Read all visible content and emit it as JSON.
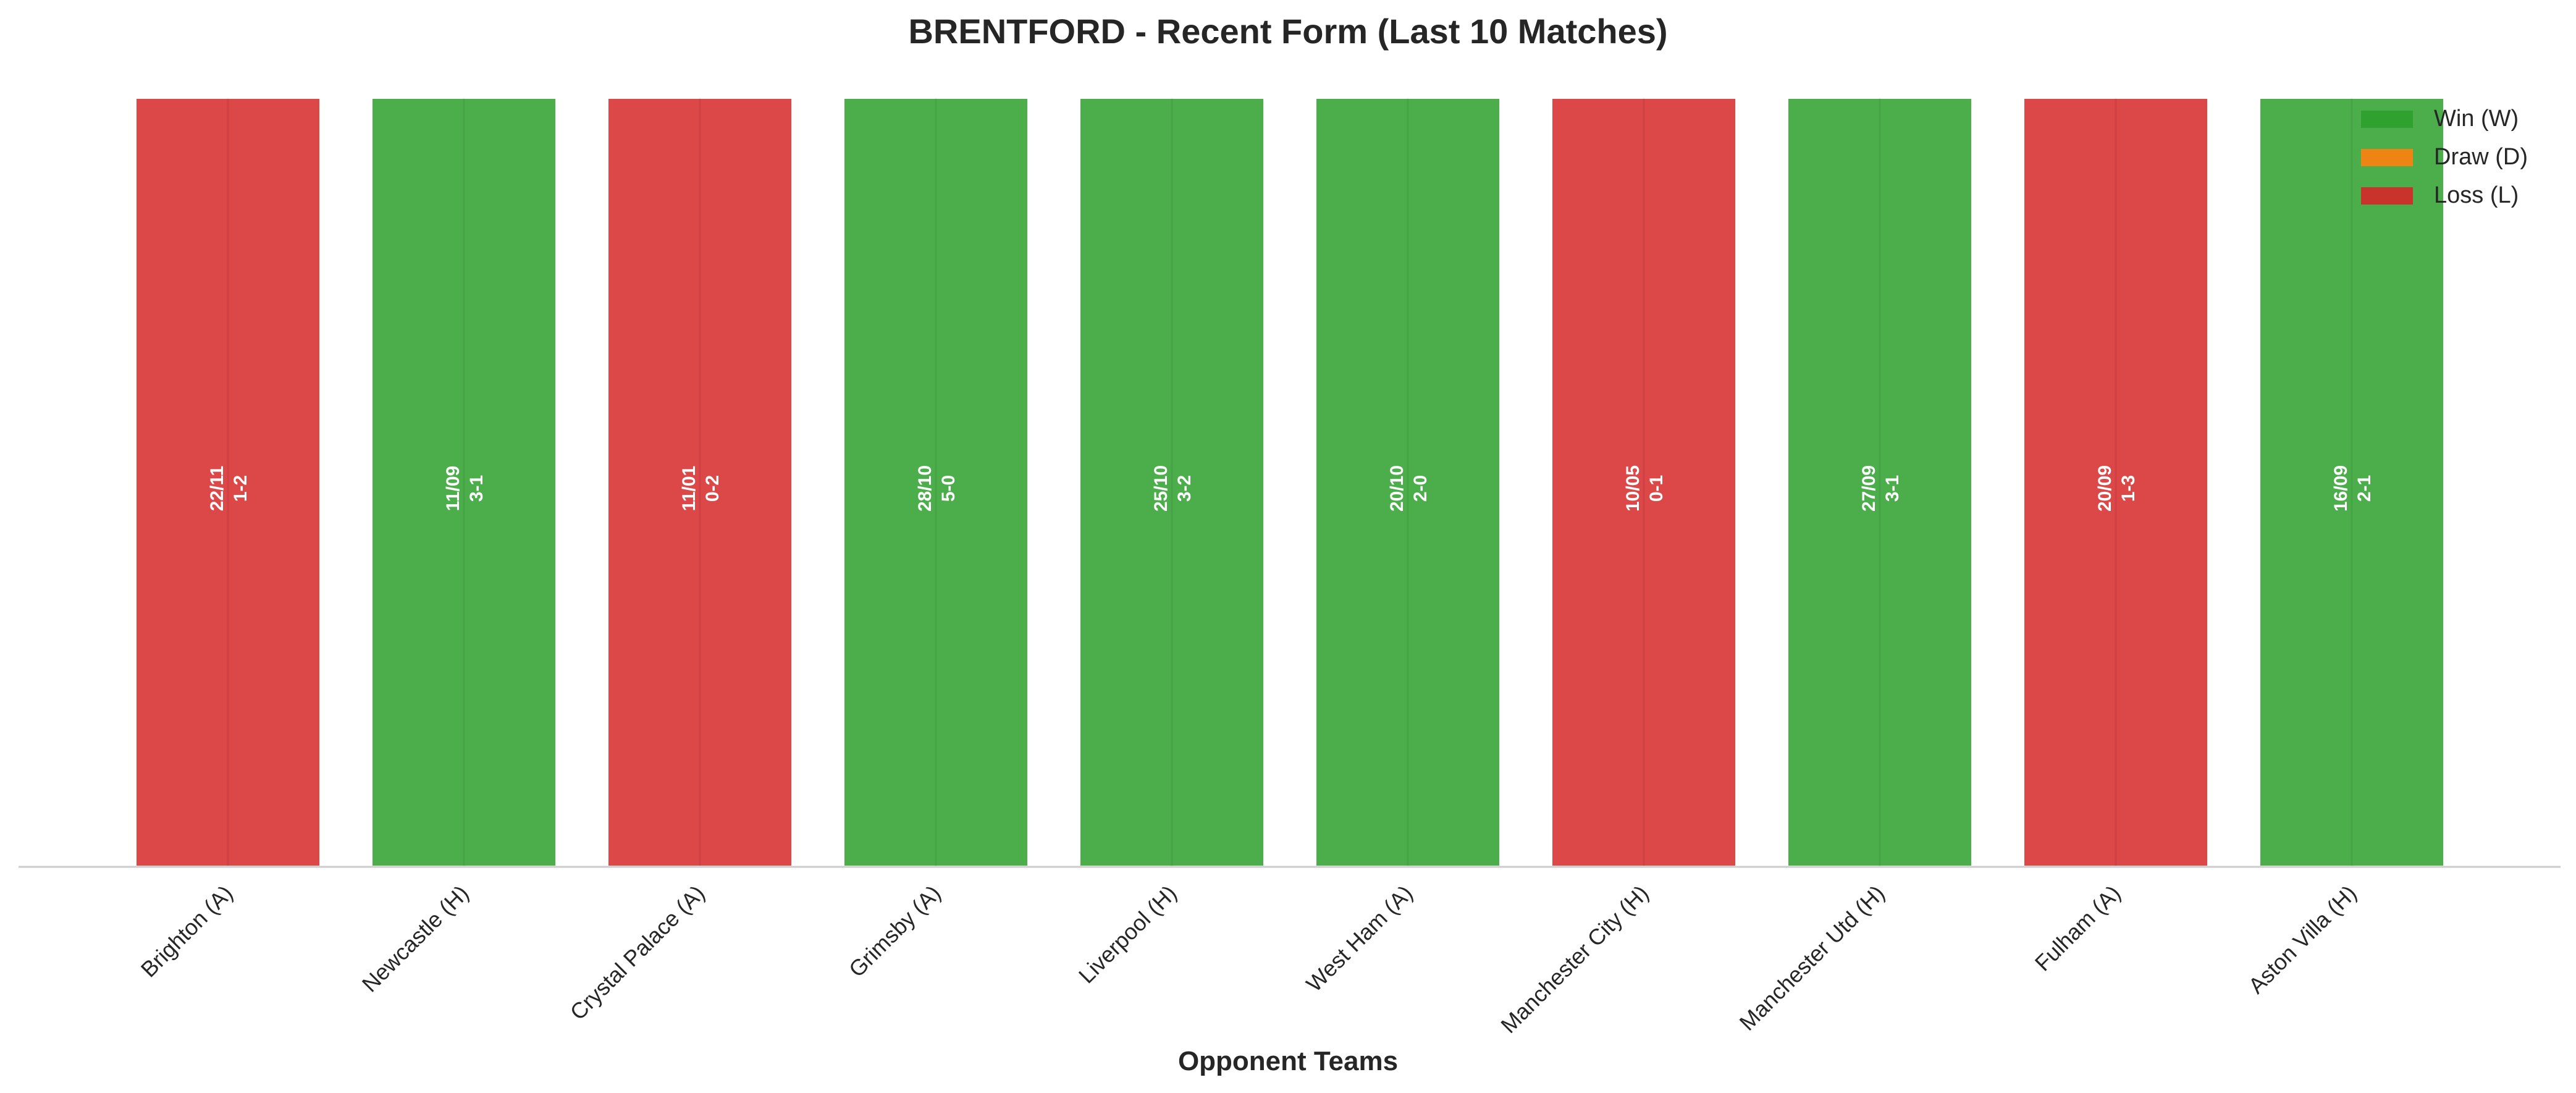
{
  "chart_data": {
    "type": "bar",
    "title": "BRENTFORD - Recent Form (Last 10 Matches)",
    "xlabel": "Opponent Teams",
    "ylabel": "",
    "ylim": [
      0,
      1
    ],
    "grid": false,
    "legend_position": "top-right",
    "categories": [
      "Brighton (A)",
      "Newcastle (H)",
      "Crystal Palace (A)",
      "Grimsby (A)",
      "Liverpool (H)",
      "West Ham (A)",
      "Manchester City (H)",
      "Manchester Utd (H)",
      "Fulham (A)",
      "Aston Villa (H)"
    ],
    "values": [
      1,
      1,
      1,
      1,
      1,
      1,
      1,
      1,
      1,
      1
    ],
    "results": [
      "L",
      "W",
      "L",
      "W",
      "W",
      "W",
      "L",
      "W",
      "L",
      "W"
    ],
    "dates": [
      "22/11",
      "11/09",
      "11/01",
      "28/10",
      "25/10",
      "20/10",
      "10/05",
      "27/09",
      "20/09",
      "16/09"
    ],
    "scores": [
      "1-2",
      "3-1",
      "0-2",
      "5-0",
      "3-2",
      "2-0",
      "0-1",
      "3-1",
      "1-3",
      "2-1"
    ],
    "legend": [
      {
        "key": "W",
        "label": "Win (W)",
        "color": "#2ca02c"
      },
      {
        "key": "D",
        "label": "Draw (D)",
        "color": "#ff7f0e"
      },
      {
        "key": "L",
        "label": "Loss (L)",
        "color": "#d62728"
      }
    ]
  }
}
